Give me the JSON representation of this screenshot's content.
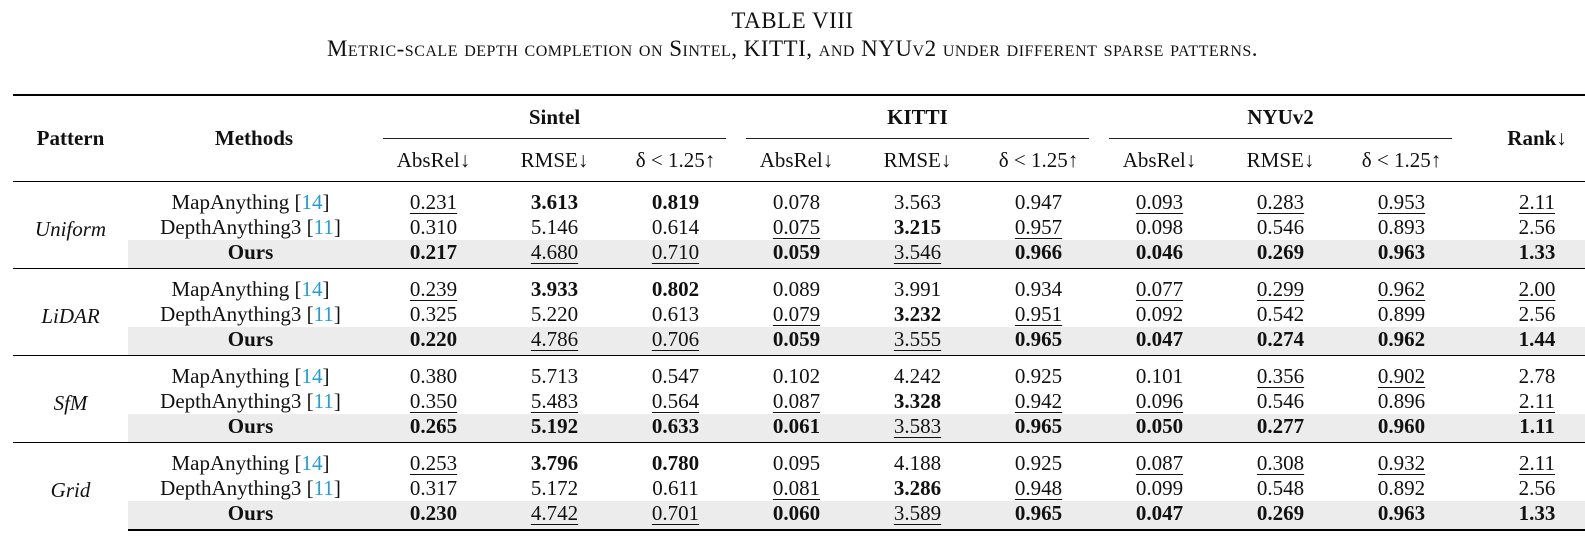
{
  "caption": {
    "number": "TABLE VIII",
    "text": "Metric-scale depth completion on Sintel, KITTI, and NYUv2 under different sparse patterns."
  },
  "headers": {
    "pattern": "Pattern",
    "methods": "Methods",
    "rank": "Rank↓",
    "datasets": [
      "Sintel",
      "KITTI",
      "NYUv2"
    ],
    "metrics": [
      "AbsRel↓",
      "RMSE↓",
      "δ < 1.25↑"
    ]
  },
  "groups": [
    {
      "pattern": "Uniform",
      "rows": [
        {
          "method": "MapAnything",
          "cite": "14",
          "values": [
            "0.231",
            "3.613",
            "0.819",
            "0.078",
            "3.563",
            "0.947",
            "0.093",
            "0.283",
            "0.953"
          ],
          "rank": "2.11"
        },
        {
          "method": "DepthAnything3",
          "cite": "11",
          "values": [
            "0.310",
            "5.146",
            "0.614",
            "0.075",
            "3.215",
            "0.957",
            "0.098",
            "0.546",
            "0.893"
          ],
          "rank": "2.56"
        },
        {
          "method": "Ours",
          "cite": "",
          "values": [
            "0.217",
            "4.680",
            "0.710",
            "0.059",
            "3.546",
            "0.966",
            "0.046",
            "0.269",
            "0.963"
          ],
          "rank": "1.33"
        }
      ]
    },
    {
      "pattern": "LiDAR",
      "rows": [
        {
          "method": "MapAnything",
          "cite": "14",
          "values": [
            "0.239",
            "3.933",
            "0.802",
            "0.089",
            "3.991",
            "0.934",
            "0.077",
            "0.299",
            "0.962"
          ],
          "rank": "2.00"
        },
        {
          "method": "DepthAnything3",
          "cite": "11",
          "values": [
            "0.325",
            "5.220",
            "0.613",
            "0.079",
            "3.232",
            "0.951",
            "0.092",
            "0.542",
            "0.899"
          ],
          "rank": "2.56"
        },
        {
          "method": "Ours",
          "cite": "",
          "values": [
            "0.220",
            "4.786",
            "0.706",
            "0.059",
            "3.555",
            "0.965",
            "0.047",
            "0.274",
            "0.962"
          ],
          "rank": "1.44"
        }
      ]
    },
    {
      "pattern": "SfM",
      "rows": [
        {
          "method": "MapAnything",
          "cite": "14",
          "values": [
            "0.380",
            "5.713",
            "0.547",
            "0.102",
            "4.242",
            "0.925",
            "0.101",
            "0.356",
            "0.902"
          ],
          "rank": "2.78"
        },
        {
          "method": "DepthAnything3",
          "cite": "11",
          "values": [
            "0.350",
            "5.483",
            "0.564",
            "0.087",
            "3.328",
            "0.942",
            "0.096",
            "0.546",
            "0.896"
          ],
          "rank": "2.11"
        },
        {
          "method": "Ours",
          "cite": "",
          "values": [
            "0.265",
            "5.192",
            "0.633",
            "0.061",
            "3.583",
            "0.965",
            "0.050",
            "0.277",
            "0.960"
          ],
          "rank": "1.11"
        }
      ]
    },
    {
      "pattern": "Grid",
      "rows": [
        {
          "method": "MapAnything",
          "cite": "14",
          "values": [
            "0.253",
            "3.796",
            "0.780",
            "0.095",
            "4.188",
            "0.925",
            "0.087",
            "0.308",
            "0.932"
          ],
          "rank": "2.11"
        },
        {
          "method": "DepthAnything3",
          "cite": "11",
          "values": [
            "0.317",
            "5.172",
            "0.611",
            "0.081",
            "3.286",
            "0.948",
            "0.099",
            "0.548",
            "0.892"
          ],
          "rank": "2.56"
        },
        {
          "method": "Ours",
          "cite": "",
          "values": [
            "0.230",
            "4.742",
            "0.701",
            "0.060",
            "3.589",
            "0.965",
            "0.047",
            "0.269",
            "0.963"
          ],
          "rank": "1.33"
        }
      ]
    }
  ]
}
